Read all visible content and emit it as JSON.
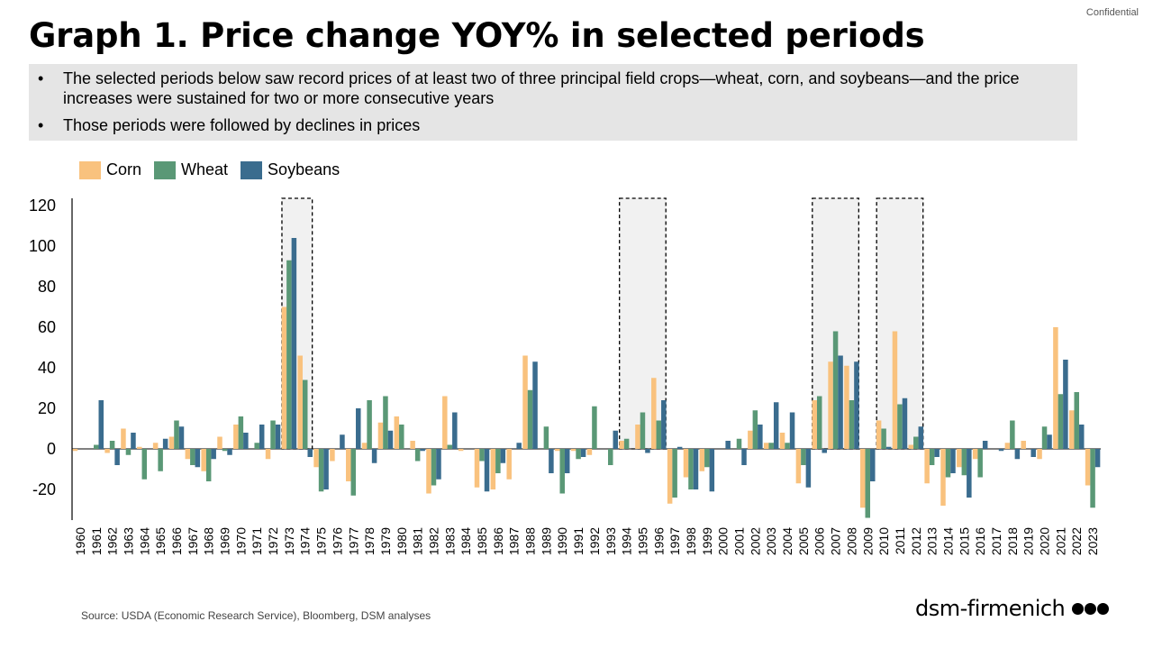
{
  "page": {
    "confidential": "Confidential",
    "title": "Graph 1. Price change YOY% in selected periods",
    "bullets": [
      "The selected periods below saw record prices of at least two of three principal field crops—wheat, corn, and soybeans—and the price increases were sustained for two or more consecutive years",
      "Those periods were followed by declines in prices"
    ],
    "source": "Source: USDA (Economic Research Service), Bloomberg, DSM analyses",
    "logo_text": "dsm-firmenich",
    "logo_icon": "three-dots-icon"
  },
  "chart_data": {
    "type": "bar",
    "title": "",
    "xlabel": "",
    "ylabel": "",
    "ylim": [
      -35,
      125
    ],
    "yticks": [
      120,
      100,
      80,
      60,
      40,
      20,
      0,
      -20
    ],
    "ytick_labels": [
      "120",
      "100",
      "80",
      "60",
      "40",
      "20",
      "0",
      "-20"
    ],
    "legend": "top-left",
    "grid": false,
    "highlight_periods": [
      [
        "1973",
        "1974"
      ],
      [
        "1994",
        "1996"
      ],
      [
        "2006",
        "2008"
      ],
      [
        "2010",
        "2012"
      ]
    ],
    "categories": [
      "1960",
      "1961",
      "1962",
      "1963",
      "1964",
      "1965",
      "1966",
      "1967",
      "1968",
      "1969",
      "1970",
      "1971",
      "1972",
      "1973",
      "1974",
      "1975",
      "1976",
      "1977",
      "1978",
      "1979",
      "1980",
      "1981",
      "1982",
      "1983",
      "1984",
      "1985",
      "1986",
      "1987",
      "1988",
      "1989",
      "1990",
      "1991",
      "1992",
      "1993",
      "1994",
      "1995",
      "1996",
      "1997",
      "1998",
      "1999",
      "2000",
      "2001",
      "2002",
      "2003",
      "2004",
      "2005",
      "2006",
      "2007",
      "2008",
      "2009",
      "2010",
      "2011",
      "2012",
      "2013",
      "2014",
      "2015",
      "2016",
      "2017",
      "2018",
      "2019",
      "2020",
      "2021",
      "2022",
      "2023"
    ],
    "series": [
      {
        "name": "Corn",
        "color": "#f9c27e",
        "values": [
          -1,
          0,
          -2,
          10,
          1,
          3,
          6,
          -5,
          -11,
          6,
          12,
          0,
          -5,
          70,
          46,
          -9,
          -6,
          -16,
          3,
          13,
          16,
          4,
          -22,
          26,
          -1,
          -19,
          -20,
          -15,
          46,
          0,
          -1,
          -1,
          -3,
          0,
          4,
          12,
          35,
          -27,
          -14,
          -11,
          0,
          0,
          9,
          3,
          8,
          -17,
          24,
          43,
          41,
          -29,
          14,
          58,
          2,
          -17,
          -28,
          -9,
          -5,
          0,
          3,
          4,
          -5,
          60,
          19,
          -18
        ]
      },
      {
        "name": "Wheat",
        "color": "#5a9876",
        "values": [
          0,
          2,
          4,
          -3,
          -15,
          -11,
          14,
          -8,
          -16,
          -1,
          16,
          3,
          14,
          93,
          34,
          -21,
          0,
          -23,
          24,
          26,
          12,
          -6,
          -18,
          2,
          0,
          -6,
          -12,
          0,
          29,
          11,
          -22,
          -5,
          21,
          -8,
          5,
          18,
          14,
          -24,
          -20,
          -9,
          0,
          5,
          19,
          3,
          3,
          -8,
          26,
          58,
          24,
          -34,
          10,
          22,
          6,
          -8,
          -14,
          -13,
          -14,
          0,
          14,
          0,
          11,
          27,
          28,
          -29
        ]
      },
      {
        "name": "Soybeans",
        "color": "#3a6c8e",
        "values": [
          0,
          24,
          -8,
          8,
          0,
          5,
          11,
          -9,
          -5,
          -3,
          8,
          12,
          12,
          104,
          -4,
          -20,
          7,
          20,
          -7,
          9,
          0,
          -1,
          -15,
          18,
          0,
          -21,
          -7,
          3,
          43,
          -12,
          -12,
          -4,
          0,
          9,
          0,
          -2,
          24,
          1,
          -20,
          -21,
          4,
          -8,
          12,
          23,
          18,
          -19,
          -2,
          46,
          43,
          -16,
          1,
          25,
          11,
          -4,
          -12,
          -24,
          4,
          -1,
          -5,
          -4,
          7,
          44,
          12,
          -9
        ]
      }
    ]
  }
}
